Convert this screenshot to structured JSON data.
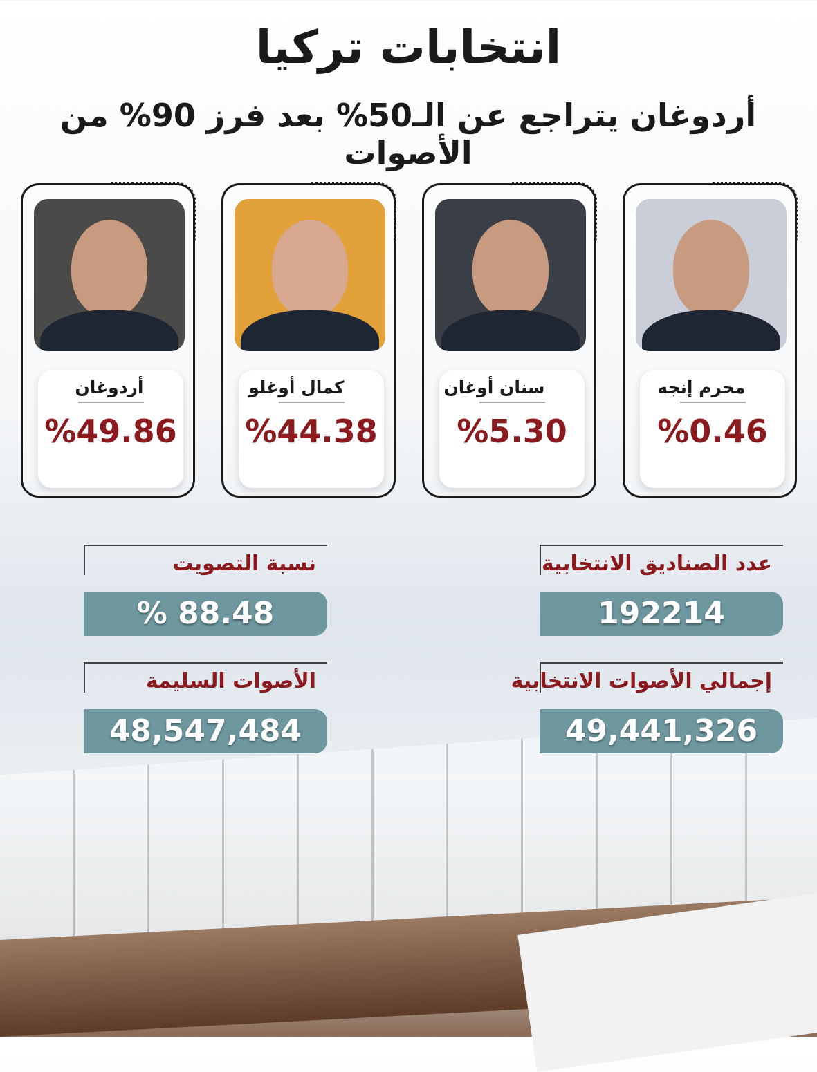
{
  "header": {
    "title": "انتخابات تركيا",
    "subtitle": "أردوغان يتراجع عن الـ50%  بعد فرز 90% من الأصوات"
  },
  "candidates": [
    {
      "name": "محرم إنجه",
      "percent": "%0.46",
      "photo_bg": "#c9ced8"
    },
    {
      "name": "سنان أوغان",
      "percent": "%5.30",
      "photo_bg": "#3a3f47"
    },
    {
      "name": "كمال أوغلو",
      "percent": "%44.38",
      "photo_bg": "#e3a13a"
    },
    {
      "name": "أردوغان",
      "percent": "%49.86",
      "photo_bg": "#4a4a48"
    }
  ],
  "stats": {
    "ballot_boxes": {
      "label": "عدد الصناديق الانتخابية",
      "value": "192214"
    },
    "turnout": {
      "label": "نسبة التصويت",
      "value": "% 88.48"
    },
    "total_votes": {
      "label": "إجمالي الأصوات الانتخابية",
      "value": "49,441,326"
    },
    "valid_votes": {
      "label": "الأصوات السليمة",
      "value": "48,547,484"
    }
  },
  "colors": {
    "accent": "#8b1a1f",
    "value_box": "#6e97a0"
  }
}
